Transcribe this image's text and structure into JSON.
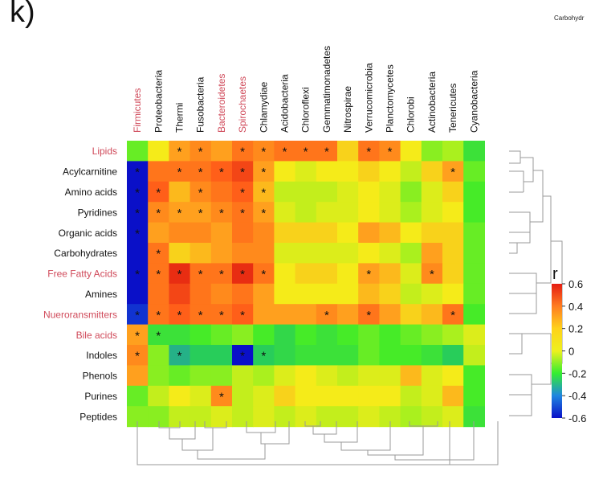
{
  "panel_label": "k)",
  "corner_label": "Carbohydr",
  "chart_data": {
    "type": "heatmap",
    "title": "",
    "columns": [
      "Firmicutes",
      "Proteobacteria",
      "Thermi",
      "Fusobacteria",
      "Bacteroidetes",
      "Spirochaetes",
      "Chlamydiae",
      "Acidobacteria",
      "Chloroflexi",
      "Gemmatimonadetes",
      "Nitrospirae",
      "Verrucomicrobia",
      "Planctomycetes",
      "Chlorobi",
      "Actinobacteria",
      "Tenericutes",
      "Cyanobacteria"
    ],
    "rows": [
      "Lipids",
      "Acylcarnitine",
      "Amino acids",
      "Pyridines",
      "Organic acids",
      "Carbohydrates",
      "Free Fatty Acids",
      "Amines",
      "Nueroransmitters",
      "Bile acids",
      "Indoles",
      "Phenols",
      "Purines",
      "Peptides"
    ],
    "highlighted_columns": [
      "Firmicutes",
      "Bacteroidetes",
      "Spirochaetes"
    ],
    "highlighted_rows": [
      "Lipids",
      "Free Fatty Acids",
      "Nueroransmitters",
      "Bile acids"
    ],
    "highlight_color": "#d04a5a",
    "values": [
      [
        -0.1,
        0.15,
        0.3,
        0.35,
        0.3,
        0.4,
        0.35,
        0.4,
        0.4,
        0.4,
        0.2,
        0.4,
        0.35,
        0.15,
        -0.05,
        0.0,
        -0.2
      ],
      [
        -0.6,
        0.4,
        0.4,
        0.4,
        0.45,
        0.5,
        0.3,
        0.15,
        0.1,
        0.15,
        0.15,
        0.2,
        0.15,
        0.05,
        0.2,
        0.3,
        -0.1
      ],
      [
        -0.6,
        0.45,
        0.25,
        0.35,
        0.4,
        0.45,
        0.25,
        0.05,
        0.05,
        0.05,
        0.1,
        0.15,
        0.1,
        -0.05,
        0.1,
        0.2,
        -0.15
      ],
      [
        -0.6,
        0.35,
        0.3,
        0.3,
        0.35,
        0.4,
        0.3,
        0.1,
        0.05,
        0.1,
        0.1,
        0.15,
        0.1,
        0.0,
        0.1,
        0.15,
        -0.15
      ],
      [
        -0.6,
        0.3,
        0.35,
        0.35,
        0.3,
        0.4,
        0.35,
        0.2,
        0.2,
        0.2,
        0.15,
        0.3,
        0.25,
        0.15,
        0.2,
        0.2,
        -0.1
      ],
      [
        -0.6,
        0.4,
        0.2,
        0.25,
        0.3,
        0.35,
        0.35,
        0.1,
        0.1,
        0.1,
        0.1,
        0.15,
        0.1,
        0.0,
        0.3,
        0.2,
        -0.1
      ],
      [
        -0.6,
        0.4,
        0.55,
        0.4,
        0.4,
        0.55,
        0.4,
        0.15,
        0.2,
        0.2,
        0.15,
        0.3,
        0.25,
        0.1,
        0.35,
        0.2,
        -0.1
      ],
      [
        -0.6,
        0.4,
        0.5,
        0.4,
        0.35,
        0.4,
        0.3,
        0.15,
        0.15,
        0.15,
        0.15,
        0.25,
        0.2,
        0.05,
        0.1,
        0.15,
        -0.1
      ],
      [
        -0.55,
        0.4,
        0.45,
        0.4,
        0.4,
        0.45,
        0.3,
        0.3,
        0.3,
        0.35,
        0.3,
        0.4,
        0.3,
        0.2,
        0.25,
        0.4,
        -0.15
      ],
      [
        0.3,
        -0.2,
        -0.2,
        -0.15,
        -0.1,
        -0.05,
        -0.15,
        -0.25,
        -0.15,
        -0.2,
        -0.15,
        -0.1,
        -0.15,
        -0.1,
        -0.05,
        0.0,
        0.1
      ],
      [
        0.35,
        -0.05,
        -0.35,
        -0.3,
        -0.3,
        -0.6,
        -0.3,
        -0.25,
        -0.2,
        -0.2,
        -0.2,
        -0.1,
        -0.15,
        -0.15,
        -0.2,
        -0.3,
        0.05
      ],
      [
        0.3,
        -0.05,
        -0.1,
        -0.05,
        -0.05,
        0.05,
        0.0,
        0.1,
        0.15,
        0.1,
        0.05,
        0.1,
        0.1,
        0.25,
        0.1,
        0.15,
        -0.15
      ],
      [
        -0.1,
        0.05,
        0.15,
        0.1,
        0.35,
        0.05,
        0.1,
        0.2,
        0.15,
        0.15,
        0.15,
        0.15,
        0.15,
        0.05,
        0.1,
        0.25,
        -0.15
      ],
      [
        -0.05,
        -0.05,
        0.05,
        0.05,
        0.1,
        0.05,
        0.1,
        0.05,
        0.1,
        0.05,
        0.05,
        0.1,
        0.05,
        0.0,
        0.05,
        0.1,
        -0.2
      ]
    ],
    "significance": [
      [
        0,
        0,
        1,
        1,
        0,
        1,
        1,
        1,
        1,
        1,
        0,
        1,
        1,
        0,
        0,
        0,
        0
      ],
      [
        1,
        0,
        1,
        1,
        1,
        1,
        1,
        0,
        0,
        0,
        0,
        0,
        0,
        0,
        0,
        1,
        0
      ],
      [
        1,
        1,
        0,
        1,
        0,
        1,
        1,
        0,
        0,
        0,
        0,
        0,
        0,
        0,
        0,
        0,
        0
      ],
      [
        1,
        1,
        1,
        1,
        1,
        1,
        1,
        0,
        0,
        0,
        0,
        0,
        0,
        0,
        0,
        0,
        0
      ],
      [
        1,
        0,
        0,
        0,
        0,
        0,
        0,
        0,
        0,
        0,
        0,
        0,
        0,
        0,
        0,
        0,
        0
      ],
      [
        0,
        1,
        0,
        0,
        0,
        0,
        0,
        0,
        0,
        0,
        0,
        0,
        0,
        0,
        0,
        0,
        0
      ],
      [
        1,
        1,
        1,
        1,
        1,
        1,
        1,
        0,
        0,
        0,
        0,
        1,
        0,
        0,
        1,
        0,
        0
      ],
      [
        0,
        0,
        0,
        0,
        0,
        0,
        0,
        0,
        0,
        0,
        0,
        0,
        0,
        0,
        0,
        0,
        0
      ],
      [
        1,
        1,
        1,
        1,
        1,
        1,
        0,
        0,
        0,
        1,
        0,
        1,
        0,
        0,
        0,
        1,
        0
      ],
      [
        1,
        1,
        0,
        0,
        0,
        0,
        0,
        0,
        0,
        0,
        0,
        0,
        0,
        0,
        0,
        0,
        0
      ],
      [
        1,
        0,
        1,
        0,
        0,
        1,
        1,
        0,
        0,
        0,
        0,
        0,
        0,
        0,
        0,
        0,
        0
      ],
      [
        0,
        0,
        0,
        0,
        0,
        0,
        0,
        0,
        0,
        0,
        0,
        0,
        0,
        0,
        0,
        0,
        0
      ],
      [
        0,
        0,
        0,
        0,
        1,
        0,
        0,
        0,
        0,
        0,
        0,
        0,
        0,
        0,
        0,
        0,
        0
      ],
      [
        0,
        0,
        0,
        0,
        0,
        0,
        0,
        0,
        0,
        0,
        0,
        0,
        0,
        0,
        0,
        0,
        0
      ]
    ],
    "star_symbol": "*",
    "legend": {
      "title": "r",
      "range": [
        -0.6,
        0.6
      ],
      "ticks": [
        "0.6",
        "0.4",
        "0.2",
        "0",
        "-0.2",
        "-0.4",
        "-0.6"
      ],
      "colors": [
        "#e51c12",
        "#ff7d20",
        "#ffd21a",
        "#eef01e",
        "#33ee30",
        "#1f86e0",
        "#0a10c8"
      ],
      "placement": "right"
    }
  }
}
